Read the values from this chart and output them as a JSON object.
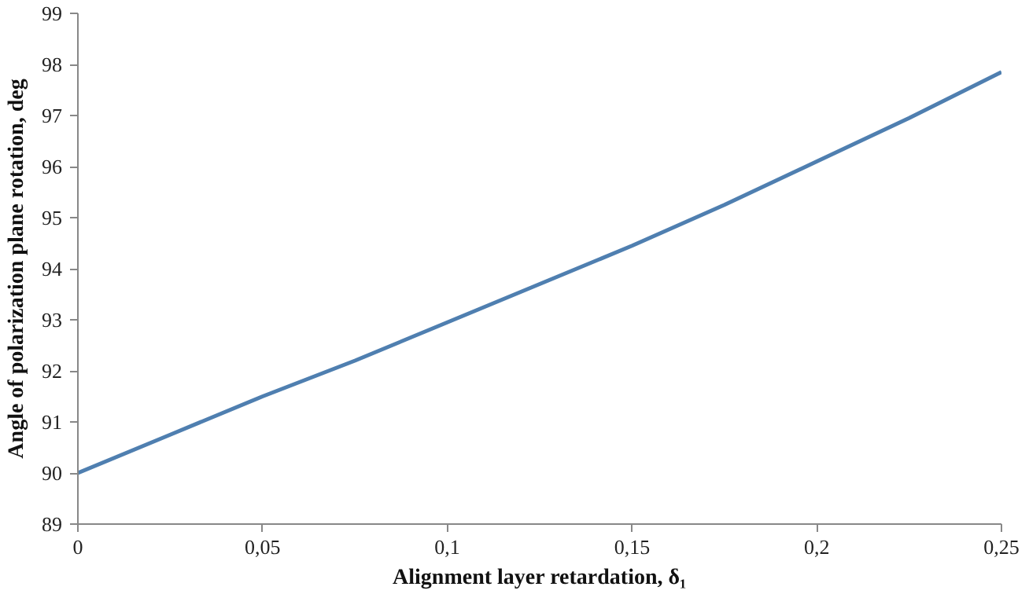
{
  "chart_data": {
    "type": "line",
    "xlabel": "Alignment layer retardation, δ₁",
    "ylabel": "Angle of polarization plane rotation, deg",
    "x": [
      0,
      0.025,
      0.05,
      0.075,
      0.1,
      0.125,
      0.15,
      0.175,
      0.2,
      0.225,
      0.25
    ],
    "series": [
      {
        "color": "#4f7fb0",
        "values": [
          90,
          90.75,
          91.5,
          92.2,
          92.95,
          93.7,
          94.45,
          95.25,
          96.1,
          96.95,
          97.85
        ]
      }
    ],
    "xlim": [
      0,
      0.25
    ],
    "ylim": [
      89,
      99
    ],
    "xticks": [
      0,
      {
        "value": 0.05,
        "label": "0,05"
      },
      {
        "value": 0.1,
        "label": "0,1"
      },
      {
        "value": 0.15,
        "label": "0,15"
      },
      {
        "value": 0.2,
        "label": "0,2"
      },
      {
        "value": 0.25,
        "label": "0,25"
      }
    ],
    "yticks": [
      89,
      90,
      91,
      92,
      93,
      94,
      95,
      96,
      97,
      98,
      99
    ],
    "grid": false,
    "marker": "none",
    "line_style": "solid"
  }
}
